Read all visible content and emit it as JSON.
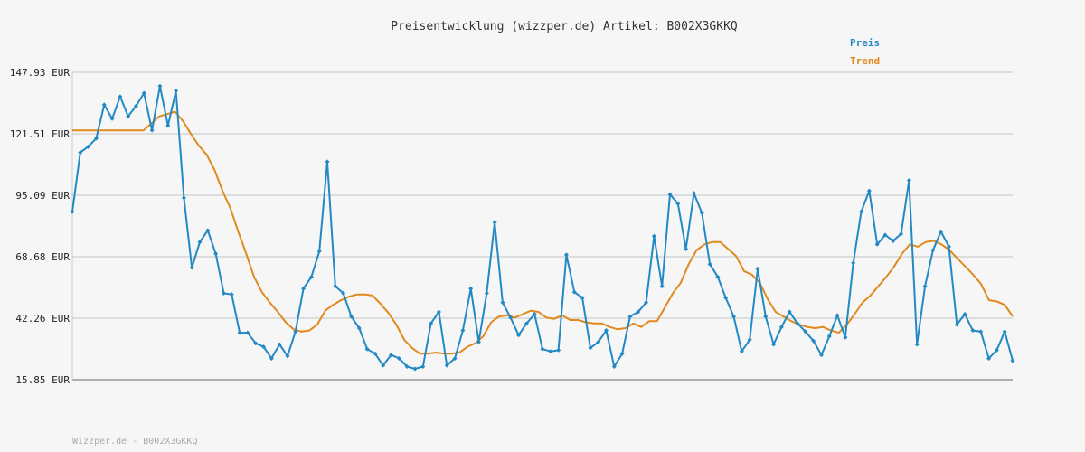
{
  "chart_data": {
    "type": "line",
    "title": "Preisentwicklung (wizzper.de) Artikel: B002X3GKKQ",
    "footer": "Wizzper.de - B002X3GKKQ",
    "y_ticks": [
      "147.93 EUR",
      "121.51 EUR",
      "95.09 EUR",
      "68.68 EUR",
      "42.26 EUR",
      "15.85 EUR"
    ],
    "ylim": [
      15.85,
      147.93
    ],
    "grid": true,
    "legend_position": "top-right",
    "colors": {
      "preis": "#2289c4",
      "trend": "#e08a1e"
    },
    "series": [
      {
        "name": "Preis",
        "values": [
          88.0,
          113.5,
          116.0,
          119.5,
          134.0,
          128.0,
          137.5,
          129.0,
          133.5,
          139.0,
          123.0,
          142.0,
          125.0,
          140.0,
          94.0,
          64.0,
          75.0,
          80.0,
          70.0,
          53.0,
          52.5,
          36.0,
          36.0,
          31.5,
          30.0,
          25.0,
          31.0,
          26.0,
          36.5,
          55.0,
          60.0,
          71.0,
          109.5,
          56.0,
          53.0,
          43.0,
          38.0,
          29.0,
          27.0,
          22.0,
          26.5,
          25.0,
          21.5,
          20.5,
          21.5,
          40.0,
          45.0,
          22.0,
          25.0,
          37.0,
          55.0,
          32.0,
          53.0,
          83.5,
          49.0,
          42.5,
          35.0,
          40.0,
          44.0,
          29.0,
          28.0,
          28.5,
          69.5,
          53.5,
          51.0,
          29.5,
          32.0,
          37.0,
          21.5,
          27.0,
          43.0,
          45.0,
          49.0,
          77.5,
          56.0,
          95.5,
          91.5,
          72.0,
          96.0,
          87.5,
          65.5,
          60.0,
          51.0,
          43.0,
          28.0,
          33.0,
          63.5,
          43.0,
          31.0,
          38.5,
          45.0,
          40.0,
          36.5,
          32.5,
          26.5,
          34.5,
          43.5,
          34.0,
          66.0,
          88.0,
          97.0,
          74.0,
          78.0,
          75.5,
          78.5,
          101.5,
          31.0,
          56.0,
          71.5,
          79.5,
          73.0,
          39.5,
          44.0,
          37.0,
          36.5,
          25.0,
          28.5,
          36.5,
          24.0
        ]
      },
      {
        "name": "Trend",
        "values": [
          123.0,
          123.0,
          123.0,
          123.0,
          123.0,
          123.0,
          123.0,
          123.0,
          123.0,
          123.0,
          126.0,
          129.0,
          130.0,
          131.0,
          127.0,
          121.5,
          116.5,
          112.5,
          106.0,
          97.0,
          89.5,
          79.5,
          70.0,
          60.0,
          53.5,
          49.0,
          45.0,
          40.5,
          37.5,
          36.5,
          37.0,
          39.5,
          45.5,
          48.0,
          50.0,
          51.5,
          52.5,
          52.5,
          52.0,
          48.5,
          44.5,
          39.5,
          33.0,
          29.5,
          27.0,
          27.0,
          27.5,
          27.0,
          27.0,
          27.5,
          30.0,
          31.5,
          34.5,
          40.5,
          43.0,
          43.5,
          42.5,
          44.0,
          45.5,
          45.0,
          42.5,
          42.0,
          43.5,
          41.5,
          41.5,
          40.5,
          40.0,
          40.0,
          38.5,
          37.5,
          38.0,
          40.0,
          38.5,
          41.0,
          41.0,
          47.0,
          53.0,
          57.5,
          65.5,
          71.5,
          74.0,
          75.0,
          75.0,
          72.0,
          69.0,
          62.5,
          61.0,
          57.5,
          50.5,
          45.0,
          43.0,
          41.0,
          39.5,
          38.5,
          38.0,
          38.5,
          37.0,
          36.0,
          39.5,
          44.0,
          49.0,
          52.0,
          56.0,
          60.0,
          64.5,
          70.0,
          74.0,
          73.0,
          75.0,
          75.5,
          74.0,
          71.5,
          68.0,
          64.5,
          61.0,
          57.0,
          50.0,
          49.5,
          48.0,
          43.0
        ]
      }
    ]
  }
}
